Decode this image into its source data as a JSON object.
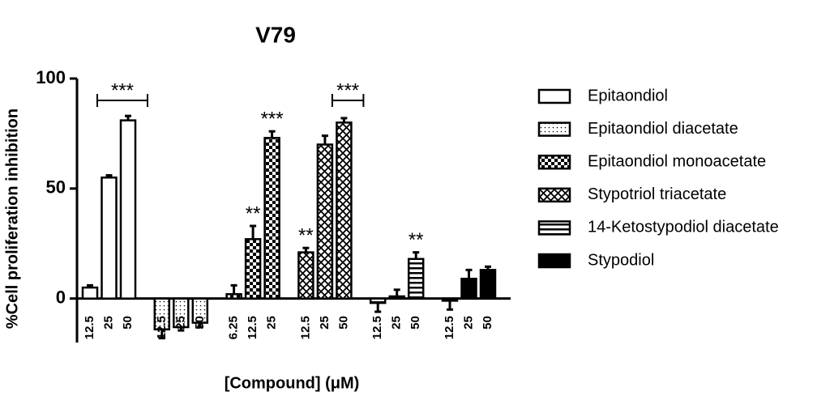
{
  "chart_data": {
    "type": "bar",
    "title": "V79",
    "y_label": "%Cell proliferation inhibition",
    "x_label": "[Compound] (μM)",
    "ylim": [
      -20,
      100
    ],
    "yticks": [
      0,
      50,
      100
    ],
    "series": [
      {
        "name": "Epitaondiol",
        "pattern": "none",
        "doses": [
          "12.5",
          "25",
          "50"
        ],
        "values": [
          5,
          55,
          81
        ],
        "errors": [
          1,
          1,
          2
        ]
      },
      {
        "name": "Epitaondiol diacetate",
        "pattern": "dots",
        "doses": [
          "12.5",
          "25",
          "50"
        ],
        "values": [
          -14,
          -13,
          -11
        ],
        "errors": [
          4,
          1.5,
          2
        ]
      },
      {
        "name": "Epitaondiol monoacetate",
        "pattern": "checker",
        "doses": [
          "6.25",
          "12.5",
          "25"
        ],
        "values": [
          2,
          27,
          73
        ],
        "errors": [
          4,
          6,
          3
        ]
      },
      {
        "name": "Stypotriol triacetate",
        "pattern": "cross",
        "doses": [
          "12.5",
          "25",
          "50"
        ],
        "values": [
          21,
          70,
          80
        ],
        "errors": [
          2,
          4,
          2
        ]
      },
      {
        "name": "14-Ketostypodiol diacetate",
        "pattern": "hlines",
        "doses": [
          "12.5",
          "25",
          "50"
        ],
        "values": [
          -2,
          1,
          18
        ],
        "errors": [
          4,
          3,
          3
        ]
      },
      {
        "name": "Stypodiol",
        "pattern": "solid",
        "doses": [
          "12.5",
          "25",
          "50"
        ],
        "values": [
          -1,
          9,
          13
        ],
        "errors": [
          4,
          4,
          1.5
        ]
      }
    ],
    "annotations": [
      {
        "text": "***",
        "series": 0,
        "points": [
          0,
          2
        ],
        "bracket": true
      },
      {
        "text": "**",
        "series": 2,
        "points": [
          1
        ],
        "bracket": false
      },
      {
        "text": "***",
        "series": 2,
        "points": [
          2
        ],
        "bracket": false
      },
      {
        "text": "**",
        "series": 3,
        "points": [
          0
        ],
        "bracket": false
      },
      {
        "text": "***",
        "series": 3,
        "points": [
          1,
          2
        ],
        "bracket": true
      },
      {
        "text": "**",
        "series": 4,
        "points": [
          2
        ],
        "bracket": false
      }
    ]
  }
}
